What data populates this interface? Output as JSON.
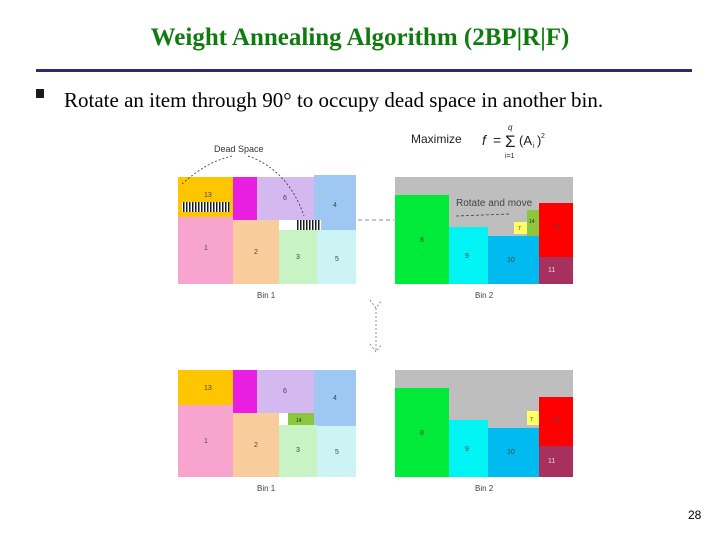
{
  "slide": {
    "title": "Weight Annealing Algorithm (2BP|R|F)",
    "bullet": "Rotate an item through 90° to occupy dead space in another bin.",
    "page_number": "28",
    "bullet_icon": "square-bullet-icon"
  },
  "figure": {
    "objective": {
      "prefix": "Maximize",
      "f": "f",
      "eq": "=",
      "sum": "Σ",
      "upper": "q",
      "lower": "i=1",
      "term": "(A",
      "sub": "i",
      "close": ")",
      "sup": "2"
    },
    "dead_space_label": "Dead Space",
    "rotate_label": "Rotate and move",
    "before": {
      "bin1": {
        "label": "Bin 1",
        "items": {
          "i13": "13",
          "i6": "6",
          "i4": "4",
          "i1": "1",
          "i2": "2",
          "i3": "3",
          "i5": "5"
        }
      },
      "bin2": {
        "label": "Bin 2",
        "items": {
          "i8": "8",
          "i9": "9",
          "i10": "10",
          "i11": "11",
          "i12": "12",
          "i14": "14",
          "i7": "7"
        }
      }
    },
    "after": {
      "bin1": {
        "label": "Bin 1",
        "items": {
          "i13": "13",
          "i6": "6",
          "i4": "4",
          "i14": "14",
          "i1": "1",
          "i2": "2",
          "i3": "3",
          "i5": "5"
        }
      },
      "bin2": {
        "label": "Bin 2",
        "items": {
          "i8": "8",
          "i9": "9",
          "i10": "10",
          "i11": "11",
          "i12": "12",
          "i7": "7"
        }
      }
    },
    "colors": {
      "gold": "#ffc600",
      "magenta": "#e81fe0",
      "lavender": "#d4b8f0",
      "sky": "#9ec8f2",
      "pink": "#f7a5cf",
      "peach": "#f9cc9c",
      "mint": "#c7f3c5",
      "ice": "#cdf4f4",
      "green": "#00ea3a",
      "cyan": "#00f4f4",
      "azure": "#00baf0",
      "plum": "#a8305e",
      "red": "#ff0000",
      "lime": "#8cc63c",
      "yellow": "#ffff66",
      "grey": "#bebebe"
    }
  }
}
